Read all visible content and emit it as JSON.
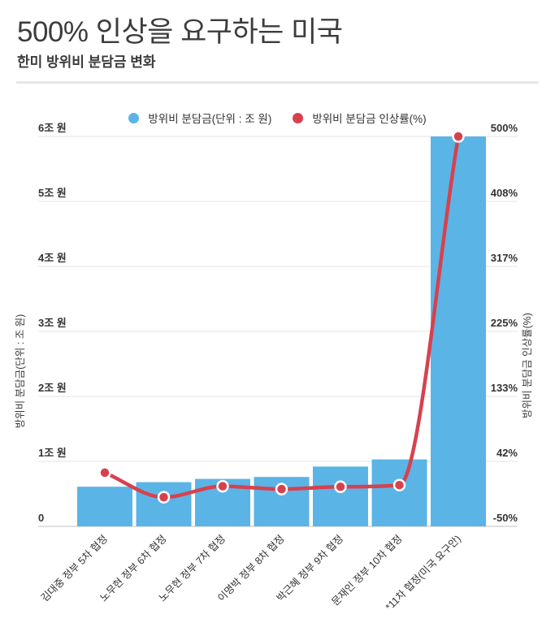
{
  "header": {
    "title": "500% 인상을 요구하는 미국",
    "subtitle": "한미 방위비 분담금 변화"
  },
  "legend": [
    {
      "label": "방위비 분담금(단위 : 조 원)",
      "color": "#5bb4e6"
    },
    {
      "label": "방위비 분담금 인상률(%)",
      "color": "#d7414e"
    }
  ],
  "chart_data": {
    "type": "combo(bar+line)",
    "categories": [
      "김대중 정부 5차 협정",
      "노무현 정부 6차 협정",
      "노무현 정부 7차 협정",
      "이명박 정부 8차 협정",
      "박근혜 정부 9차 협정",
      "문재인 정부 10차 협정",
      "*11차 협정(미국 요구안)"
    ],
    "series": [
      {
        "name": "방위비 분담금(단위 : 조 원)",
        "type": "bar",
        "axis": "left",
        "color": "#5bb4e6",
        "values": [
          0.61,
          0.68,
          0.73,
          0.76,
          0.92,
          1.03,
          6.0
        ]
      },
      {
        "name": "방위비 분담금 인상률(%)",
        "type": "line",
        "axis": "right",
        "color": "#d7414e",
        "marker_stroke": "#ffffff",
        "values": [
          25.7,
          -8.9,
          6.6,
          2.5,
          5.8,
          8.2,
          500
        ]
      }
    ],
    "left_axis": {
      "label": "방위비 분담금(단위 : 조 원)",
      "min": 0,
      "max": 6,
      "tick_values": [
        0,
        1,
        2,
        3,
        4,
        5,
        6
      ],
      "tick_labels": [
        "0",
        "1조 원",
        "2조 원",
        "3조 원",
        "4조 원",
        "5조 원",
        "6조 원"
      ]
    },
    "right_axis": {
      "label": "방위비 분담금 인상률(%)",
      "min": -50,
      "max": 500,
      "tick_labels": [
        "-50%",
        "42%",
        "133%",
        "225%",
        "317%",
        "408%",
        "500%"
      ]
    },
    "grid": true,
    "legend_position": "top-center",
    "colors": {
      "grid": "#e3e3e3",
      "baseline": "#d6d6d6",
      "tick_text": "#333333",
      "title_text": "#3c3c3c"
    }
  }
}
